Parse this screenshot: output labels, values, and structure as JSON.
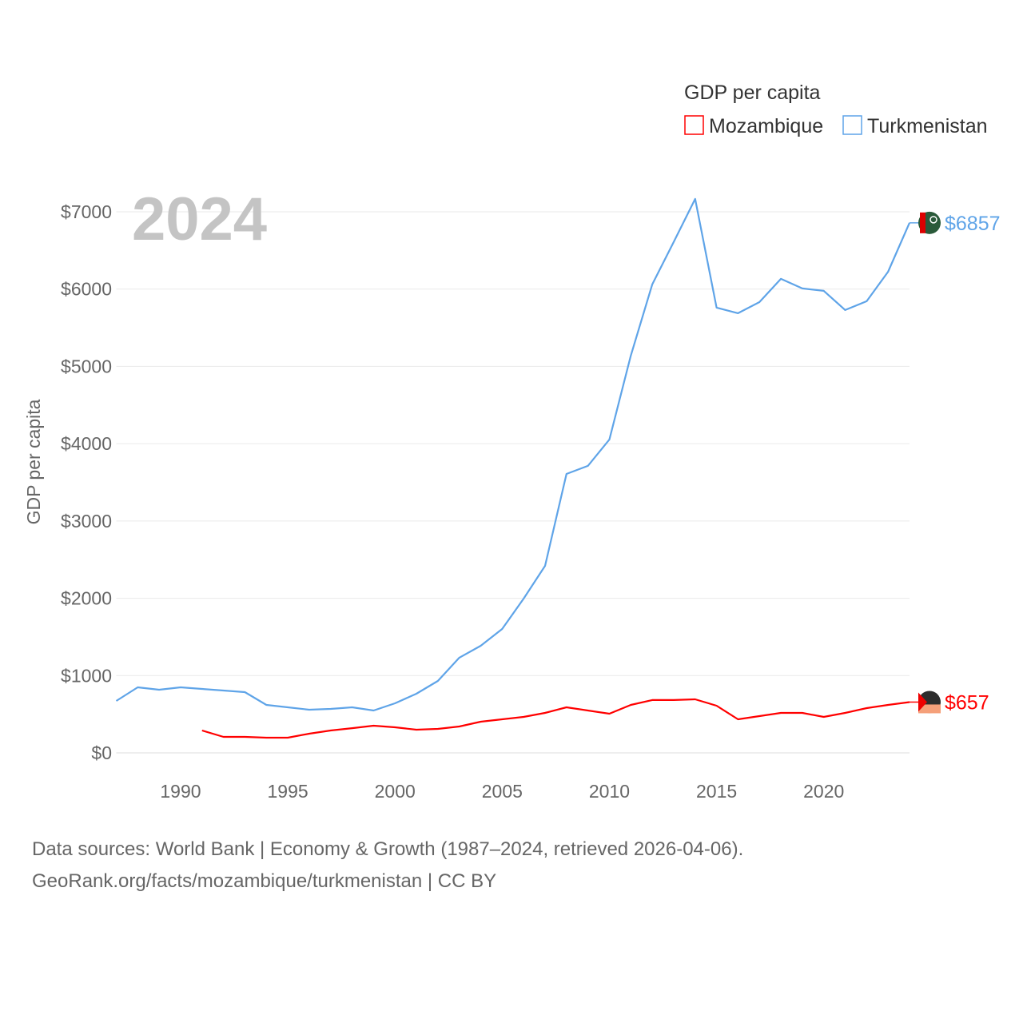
{
  "chart_data": {
    "type": "line",
    "title": "GDP per capita",
    "ylabel": "GDP per capita",
    "xlabel": "",
    "year_label": "2024",
    "xlim": [
      1987,
      2024
    ],
    "ylim": [
      0,
      7000
    ],
    "xticks": [
      1990,
      1995,
      2000,
      2005,
      2010,
      2015,
      2020
    ],
    "yticks": [
      0,
      1000,
      2000,
      3000,
      4000,
      5000,
      6000,
      7000
    ],
    "ytick_labels": [
      "$0",
      "$1000",
      "$2000",
      "$3000",
      "$4000",
      "$5000",
      "$6000",
      "$7000"
    ],
    "grid": true,
    "legend_position": "top-right",
    "series": [
      {
        "name": "Mozambique",
        "color": "#ff0000",
        "end_label": "$657",
        "x": [
          1991,
          1992,
          1993,
          1994,
          1995,
          1996,
          1997,
          1998,
          1999,
          2000,
          2001,
          2002,
          2003,
          2004,
          2005,
          2006,
          2007,
          2008,
          2009,
          2010,
          2011,
          2012,
          2013,
          2014,
          2015,
          2016,
          2017,
          2018,
          2019,
          2020,
          2021,
          2022,
          2023,
          2024
        ],
        "values": [
          290,
          207,
          207,
          196,
          196,
          248,
          290,
          320,
          352,
          331,
          300,
          310,
          341,
          403,
          434,
          465,
          517,
          589,
          548,
          507,
          620,
          683,
          683,
          693,
          610,
          434,
          476,
          517,
          517,
          465,
          517,
          579,
          620,
          657
        ]
      },
      {
        "name": "Turkmenistan",
        "color": "#5fa4e8",
        "end_label": "$6857",
        "x": [
          1987,
          1988,
          1989,
          1990,
          1991,
          1992,
          1993,
          1994,
          1995,
          1996,
          1997,
          1998,
          1999,
          2000,
          2001,
          2002,
          2003,
          2004,
          2005,
          2006,
          2007,
          2008,
          2009,
          2010,
          2011,
          2012,
          2013,
          2014,
          2015,
          2016,
          2017,
          2018,
          2019,
          2020,
          2021,
          2022,
          2023,
          2024
        ],
        "values": [
          672,
          848,
          817,
          848,
          827,
          807,
          786,
          620,
          589,
          558,
          569,
          589,
          548,
          641,
          765,
          931,
          1231,
          1386,
          1603,
          1996,
          2420,
          3609,
          3713,
          4054,
          5140,
          6060,
          6608,
          7166,
          5760,
          5688,
          5832,
          6132,
          6008,
          5977,
          5729,
          5843,
          6225,
          6857
        ]
      }
    ]
  },
  "footer": {
    "line1": "Data sources: World Bank | Economy & Growth (1987–2024, retrieved 2026-04-06).",
    "line2": "GeoRank.org/facts/mozambique/turkmenistan | CC BY"
  }
}
